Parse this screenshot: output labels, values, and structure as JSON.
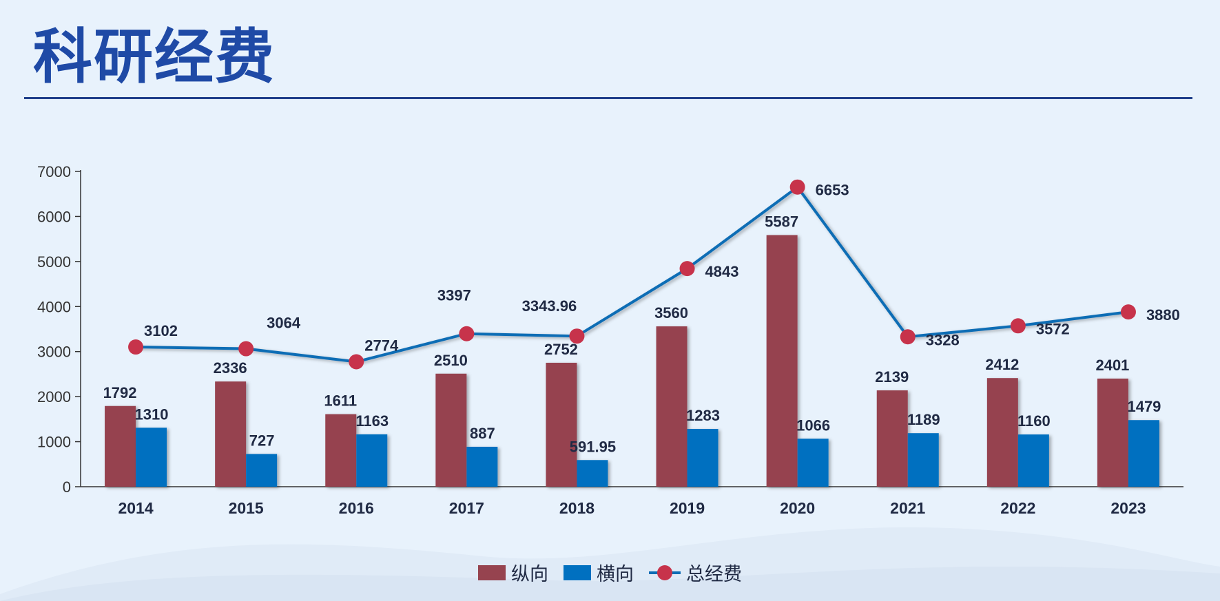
{
  "page": {
    "title": "科研经费"
  },
  "colors": {
    "vertical": "#96434f",
    "horizontal": "#0070c0",
    "line": "#0e6db5",
    "marker": "#c7334b",
    "title": "#1f4aa6"
  },
  "chart_data": {
    "type": "bar",
    "categories": [
      "2014",
      "2015",
      "2016",
      "2017",
      "2018",
      "2019",
      "2020",
      "2021",
      "2022",
      "2023"
    ],
    "series": [
      {
        "name": "纵向",
        "type": "bar",
        "values": [
          1792,
          2336,
          1611,
          2510,
          2752,
          3560,
          5587,
          2139,
          2412,
          2401
        ]
      },
      {
        "name": "横向",
        "type": "bar",
        "values": [
          1310,
          727,
          1163,
          887,
          591.95,
          1283,
          1066,
          1189,
          1160,
          1479
        ]
      },
      {
        "name": "总经费",
        "type": "line",
        "values": [
          3102,
          3064,
          2774,
          3397,
          3343.96,
          4843,
          6653,
          3328,
          3572,
          3880
        ]
      }
    ],
    "data_labels": {
      "纵向": [
        "1792",
        "2336",
        "1611",
        "2510",
        "2752",
        "3560",
        "5587",
        "2139",
        "2412",
        "2401"
      ],
      "横向": [
        "1310",
        "727",
        "1163",
        "887",
        "591.95",
        "1283",
        "1066",
        "1189",
        "1160",
        "1479"
      ],
      "总经费": [
        "3102",
        "3064",
        "2774",
        "3397",
        "3343.96",
        "4843",
        "6653",
        "3328",
        "3572",
        "3880"
      ]
    },
    "ylim": [
      0,
      7000
    ],
    "yticks": [
      "0",
      "1000",
      "2000",
      "3000",
      "4000",
      "5000",
      "6000",
      "7000"
    ],
    "grid": false,
    "legend_position": "bottom"
  }
}
